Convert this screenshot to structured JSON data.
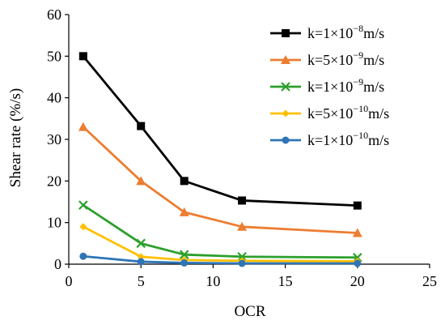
{
  "chart_data": {
    "type": "line",
    "title": "",
    "xlabel": "OCR",
    "ylabel": "Shear  rate (%/s)",
    "xlim": [
      0,
      25
    ],
    "ylim": [
      0,
      60
    ],
    "x_ticks": [
      0,
      5,
      10,
      15,
      20,
      25
    ],
    "y_ticks": [
      0,
      10,
      20,
      30,
      40,
      50,
      60
    ],
    "x_tick_labels": [
      "0",
      "5",
      "10",
      "15",
      "20",
      "25"
    ],
    "y_tick_labels": [
      "0",
      "10",
      "20",
      "30",
      "40",
      "50",
      "60"
    ],
    "grid": false,
    "legend_position": "top-right",
    "x": [
      1,
      5,
      8,
      12,
      20
    ],
    "series": [
      {
        "name": "k=1×10⁻⁸m/s",
        "legend_base": "k=1×10",
        "legend_exp": "−8",
        "legend_unit": "m/s",
        "color": "#000000",
        "marker": "square",
        "values": [
          50.0,
          33.2,
          20.0,
          15.3,
          14.1
        ]
      },
      {
        "name": "k=5×10⁻⁹m/s",
        "legend_base": "k=5×10",
        "legend_exp": "−9",
        "legend_unit": "m/s",
        "color": "#ED7D31",
        "marker": "triangle",
        "values": [
          33.0,
          20.0,
          12.5,
          9.0,
          7.5
        ]
      },
      {
        "name": "k=1×10⁻⁹m/s",
        "legend_base": "k=1×10",
        "legend_exp": "−9",
        "legend_unit": "m/s",
        "color": "#2CA02C",
        "marker": "x",
        "values": [
          14.2,
          5.0,
          2.3,
          1.8,
          1.6
        ]
      },
      {
        "name": "k=5×10⁻¹⁰m/s",
        "legend_base": "k=5×10",
        "legend_exp": "−10",
        "legend_unit": "m/s",
        "color": "#FFC000",
        "marker": "diamond",
        "values": [
          9.0,
          1.8,
          1.0,
          0.8,
          0.7
        ]
      },
      {
        "name": "k=1×10⁻¹⁰m/s",
        "legend_base": "k=1×10",
        "legend_exp": "−10",
        "legend_unit": "m/s",
        "color": "#2E75B6",
        "marker": "circle",
        "values": [
          1.9,
          0.6,
          0.3,
          0.2,
          0.2
        ]
      }
    ]
  }
}
